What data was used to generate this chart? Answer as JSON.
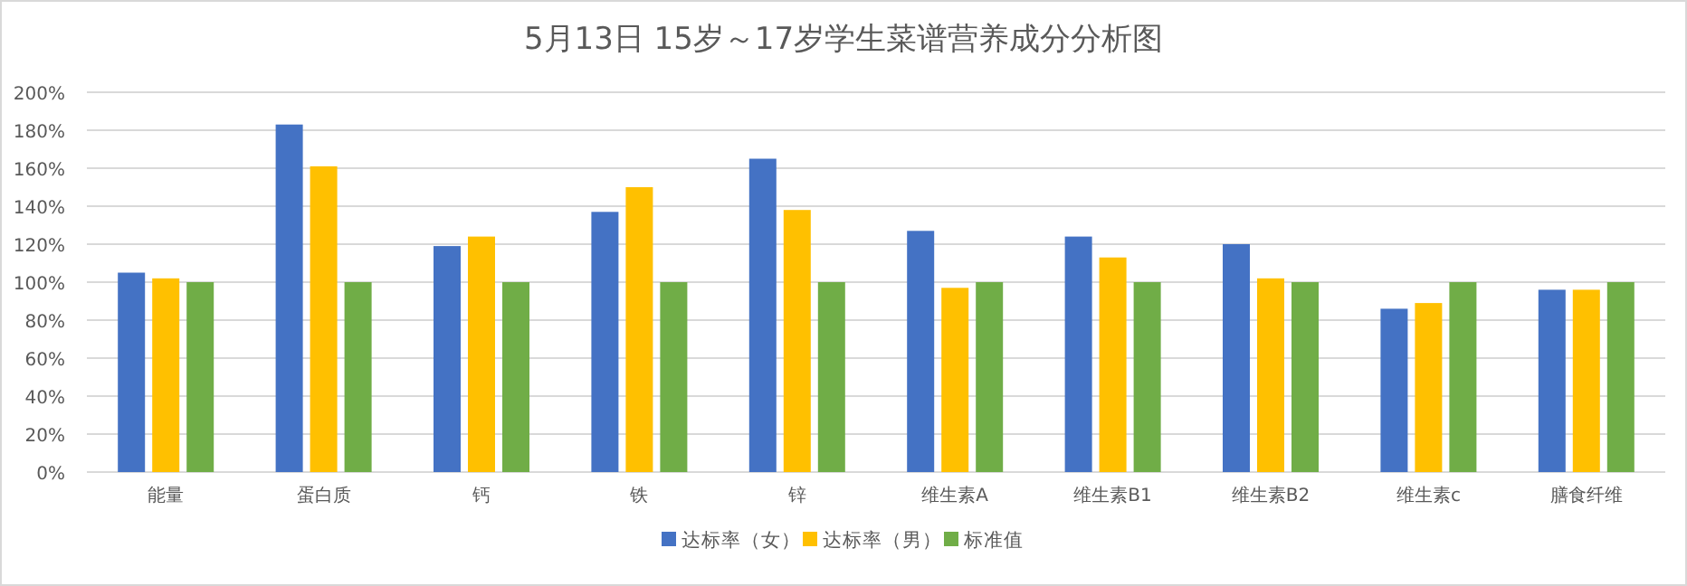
{
  "chart_data": {
    "type": "bar",
    "title": "5月13日 15岁～17岁学生菜谱营养成分分析图",
    "categories": [
      "能量",
      "蛋白质",
      "钙",
      "铁",
      "锌",
      "维生素A",
      "维生素B1",
      "维生素B2",
      "维生素c",
      "膳食纤维"
    ],
    "series": [
      {
        "name": "达标率（女）",
        "color": "#4472c4",
        "values": [
          105,
          183,
          119,
          137,
          165,
          127,
          124,
          120,
          86,
          96
        ]
      },
      {
        "name": "达标率（男）",
        "color": "#ffc000",
        "values": [
          102,
          161,
          124,
          150,
          138,
          97,
          113,
          102,
          89,
          96
        ]
      },
      {
        "name": "标准值",
        "color": "#70ad47",
        "values": [
          100,
          100,
          100,
          100,
          100,
          100,
          100,
          100,
          100,
          100
        ]
      }
    ],
    "ylim": [
      0,
      200
    ],
    "yticks": [
      {
        "value": 0,
        "label": "0%"
      },
      {
        "value": 20,
        "label": "20%"
      },
      {
        "value": 40,
        "label": "40%"
      },
      {
        "value": 60,
        "label": "60%"
      },
      {
        "value": 80,
        "label": "80%"
      },
      {
        "value": 100,
        "label": "100%"
      },
      {
        "value": 120,
        "label": "120%"
      },
      {
        "value": 140,
        "label": "140%"
      },
      {
        "value": 160,
        "label": "160%"
      },
      {
        "value": 180,
        "label": "180%"
      },
      {
        "value": 200,
        "label": "200%"
      }
    ],
    "grid": "y",
    "legend": "bottom"
  }
}
